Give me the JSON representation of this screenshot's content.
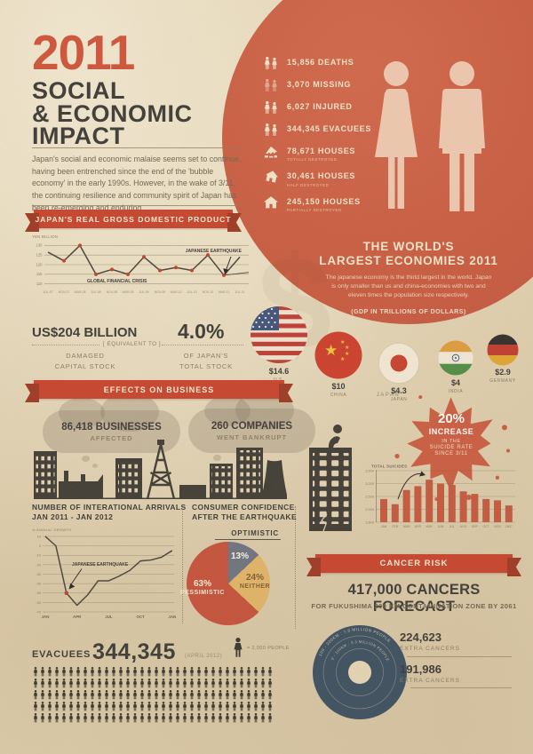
{
  "page_title": "2011 Social & Economic Impact",
  "colors": {
    "paper": "#e6d6b5",
    "accent_red": "#c8422c",
    "circle_red": "#cb5c41",
    "dark": "#3b3936",
    "cream": "#f5e6cb",
    "navy": "#3a4e60",
    "skin": "#f0c9b1",
    "bar_red": "#c4573e",
    "pie_gray": "#6c7280",
    "pie_yellow": "#e2b467",
    "pie_red": "#c5503a"
  },
  "header": {
    "year": "2011",
    "t1": "SOCIAL",
    "t2": "& ECONOMIC",
    "t3": "IMPACT",
    "intro": "Japan's social and economic malaise seems set to continue, having been entrenched since the end of the 'bubble economy' in the early 1990s. However, in the wake of 3/11, the continuing resilience and community spirit of Japan has been re-emerging and enduring."
  },
  "impact_stats": {
    "items": [
      {
        "icon": "people-pair-icon",
        "value": "15,856",
        "label": "DEATHS",
        "sub": ""
      },
      {
        "icon": "missing-persons-icon",
        "value": "3,070",
        "label": "MISSING",
        "sub": ""
      },
      {
        "icon": "injured-persons-icon",
        "value": "6,027",
        "label": "INJURED",
        "sub": ""
      },
      {
        "icon": "evacuees-persons-icon",
        "value": "344,345",
        "label": "EVACUEES",
        "sub": ""
      },
      {
        "icon": "house-destroyed-icon",
        "value": "78,671",
        "label": "HOUSES",
        "sub": "TOTALLY DESTROYED"
      },
      {
        "icon": "house-half-destroyed-icon",
        "value": "30,461",
        "label": "HOUSES",
        "sub": "HALF DESTROYED"
      },
      {
        "icon": "house-partially-destroyed-icon",
        "value": "245,150",
        "label": "HOUSES",
        "sub": "PARTIALLY DESTROYED"
      }
    ]
  },
  "economies": {
    "t1": "THE WORLD'S",
    "t2": "LARGEST ECONOMIES 2011",
    "body": "The japanese economy is the thirld largest in the world. Japan is only smaller than us and china-economies with two and eleven times the population size respectively.",
    "note": "(GDP IN TRILLIONS OF DOLLARS)",
    "countries": [
      {
        "flag": "us-flag",
        "value": "$14.6",
        "name": "U.S."
      },
      {
        "flag": "china-flag",
        "value": "$10",
        "name": "CHINA"
      },
      {
        "flag": "japan-flag",
        "value": "$4.3",
        "name": "JAPAN"
      },
      {
        "flag": "india-flag",
        "value": "$4",
        "name": "INDIA"
      },
      {
        "flag": "germany-flag",
        "value": "$2.9",
        "name": "GERMANY"
      }
    ]
  },
  "gdp_banner": "JAPAN'S REAL GROSS DOMESTIC PRODUCT",
  "capital": {
    "amount": "US$204 BILLION",
    "amount_sub1": "DAMAGED",
    "amount_sub2": "CAPITAL STOCK",
    "equiv": "[ EQUIVALENT TO ]",
    "pct": "4.0%",
    "pct_sub1": "OF JAPAN'S",
    "pct_sub2": "TOTAL STOCK"
  },
  "business": {
    "banner": "EFFECTS ON BUSINESS",
    "stat1_value": "86,418 BUSINESSES",
    "stat1_label": "AFFECTED",
    "stat2_value": "260 COMPANIES",
    "stat2_label": "WENT BANKRUPT"
  },
  "suicide": {
    "country": "JAPAN",
    "pct": "20%",
    "l1": "INCREASE",
    "l2": "IN THE",
    "l3": "SUICIDE RATE",
    "l4": "SINCE 3/11"
  },
  "arrivals_titles": {
    "t1": "NUMBER OF INTERATIONAL ARRIVALS",
    "t2": "JAN 2011 - JAN 2012"
  },
  "confidence_titles": {
    "t1": "CONSUMER CONFIDENCE",
    "t2": "AFTER THE EARTHQUAKE"
  },
  "cancer": {
    "banner": "CANCER RISK",
    "headline": "417,000 CANCERS FORECAST",
    "subline": "FOR FUKUSHIMA 200 KM CONTAMINATION ZONE BY 2061",
    "ring_outer": "100 - 200KM : 7.8 MILLION PEOPLE",
    "ring_inner": "0 - 100KM : 3.3 MILLION PEOPLE",
    "stats": [
      {
        "value": "224,623",
        "label": "EXTRA CANCERS"
      },
      {
        "value": "191,986",
        "label": "EXTRA CANCERS"
      }
    ]
  },
  "evacuees": {
    "label": "EVACUEES",
    "value": "344,345",
    "date": "(APRIL 2012)",
    "legend": "= 2,000 PEOPLE",
    "icon_rows": 5,
    "icons_per_row": 34
  },
  "chart_data": [
    {
      "id": "gdp",
      "type": "line",
      "title": "JAPAN'S REAL GROSS DOMESTIC PRODUCT",
      "ylabel": "YEN BILLION",
      "ylim": [
        108,
        132
      ],
      "yticks": [
        130,
        125,
        120,
        115,
        110
      ],
      "x": [
        "JUL-07",
        "NOV-07",
        "MAR-08",
        "JUL-08",
        "NOV-08",
        "MAR-09",
        "JUL-09",
        "NOV-09",
        "MAR-10",
        "JUL-10",
        "NOV-10",
        "MAR-11",
        "JUL-11"
      ],
      "values": [
        126.5,
        122,
        130,
        115,
        117.5,
        115,
        124,
        117,
        118.5,
        117,
        125,
        114.5,
        124
      ],
      "projection_end_value": 116,
      "annotations": {
        "crisis": "GLOBAL FINANCIAL CRISIS",
        "quake": "JAPANESE EARTHQUAKE"
      }
    },
    {
      "id": "suicides",
      "type": "bar",
      "title": "TOTAL SUICIDES",
      "categories": [
        "JAN",
        "FEB",
        "MAR",
        "APR",
        "MAY",
        "JUN",
        "JUL",
        "AUG",
        "SEP",
        "OCT",
        "NOV",
        "DEC"
      ],
      "values": [
        2400,
        2200,
        2750,
        2900,
        3150,
        3000,
        2950,
        2700,
        2600,
        2400,
        2350,
        2150
      ],
      "ylim": [
        1500,
        3500
      ],
      "yticks": [
        3500,
        3000,
        2500,
        2000,
        1500
      ]
    },
    {
      "id": "arrivals",
      "type": "line",
      "title": "NUMBER OF INTERATIONAL ARRIVALS JAN 2011 - JAN 2012",
      "ylabel": "% ANNUAL GROWTH",
      "ylim": [
        -70,
        10
      ],
      "yticks": [
        10,
        0,
        -10,
        -20,
        -30,
        -40,
        -50,
        -60,
        -70
      ],
      "x": [
        "JAN",
        "FEB",
        "MAR",
        "APR",
        "MAY",
        "JUN",
        "JUL",
        "AUG",
        "SEP",
        "OCT",
        "NOV",
        "DEC",
        "JAN"
      ],
      "xtick_indices": [
        0,
        3,
        6,
        9,
        12
      ],
      "xtick_labels": [
        "JAN",
        "APR",
        "JUL",
        "OCT",
        "JAN"
      ],
      "values": [
        10,
        0,
        -50,
        -63,
        -52,
        -37,
        -37,
        -32,
        -26,
        -16,
        -15,
        -12,
        -5
      ],
      "annotation": "JAPANESE EARTHQUAKE",
      "annotation_index": 2
    },
    {
      "id": "confidence",
      "type": "pie",
      "title": "CONSUMER CONFIDENCE AFTER THE EARTHQUAKE",
      "legend_position": "inside",
      "slices": [
        {
          "label": "OPTIMISTIC",
          "value": 13,
          "color": "#6c7280"
        },
        {
          "label": "NEITHER",
          "value": 24,
          "color": "#e2b467"
        },
        {
          "label": "PESSIMISTIC",
          "value": 63,
          "color": "#c5503a"
        }
      ]
    }
  ]
}
